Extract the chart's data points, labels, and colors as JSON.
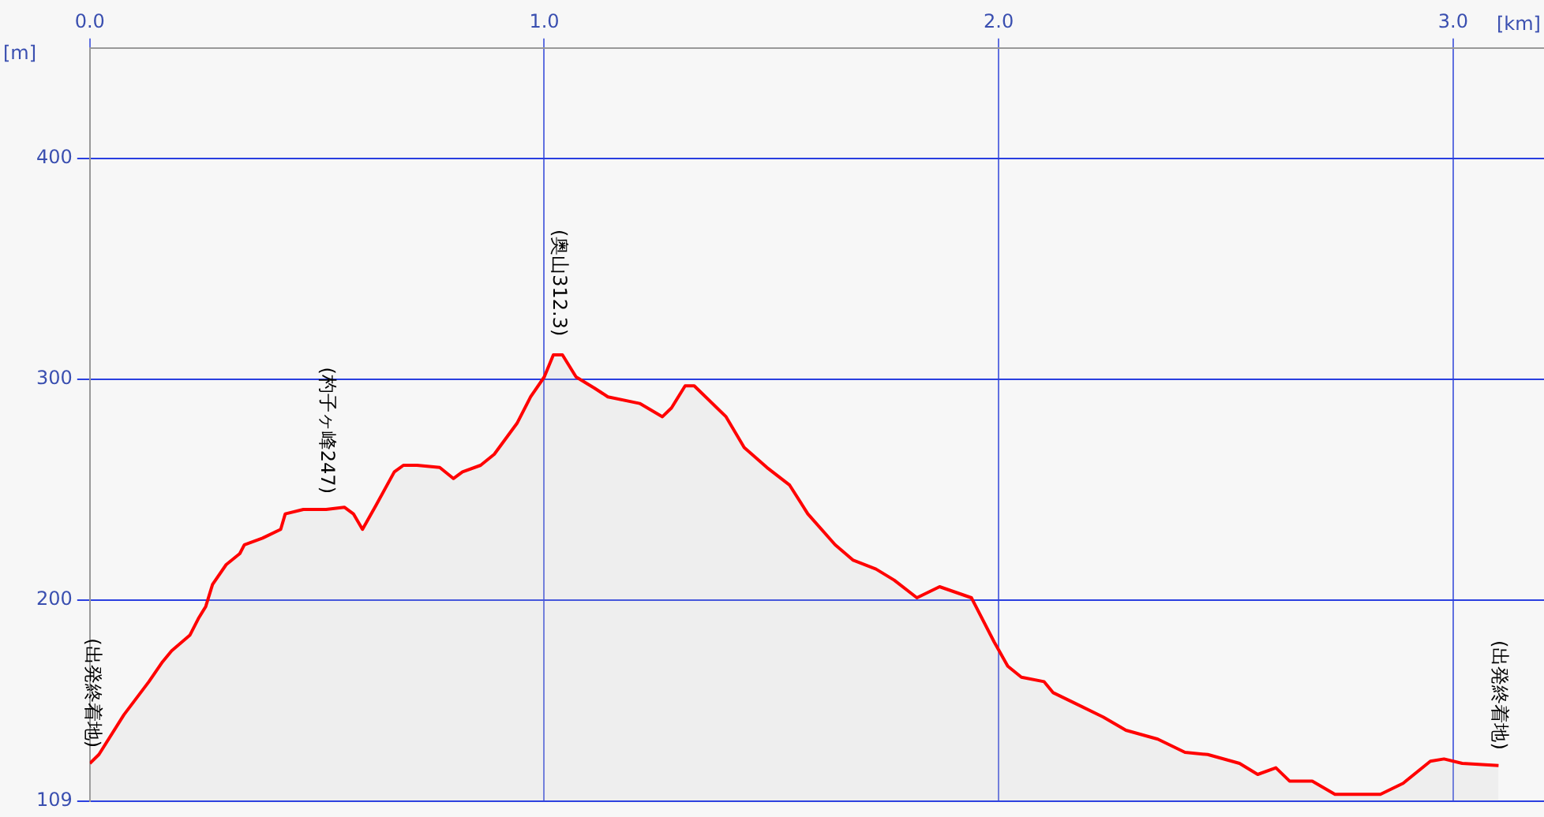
{
  "chart_data": {
    "type": "area",
    "xlabel": "[km]",
    "ylabel": "[m]",
    "x": [
      0,
      0.02,
      0.075,
      0.13,
      0.16,
      0.18,
      0.22,
      0.24,
      0.255,
      0.27,
      0.3,
      0.33,
      0.34,
      0.38,
      0.42,
      0.43,
      0.47,
      0.52,
      0.56,
      0.58,
      0.6,
      0.63,
      0.67,
      0.69,
      0.72,
      0.77,
      0.8,
      0.82,
      0.86,
      0.89,
      0.94,
      0.97,
      1.0,
      1.02,
      1.04,
      1.07,
      1.11,
      1.14,
      1.21,
      1.26,
      1.28,
      1.31,
      1.33,
      1.38,
      1.4,
      1.44,
      1.49,
      1.54,
      1.58,
      1.64,
      1.68,
      1.73,
      1.77,
      1.82,
      1.87,
      1.94,
      1.99,
      2.02,
      2.05,
      2.1,
      2.12,
      2.17,
      2.23,
      2.28,
      2.35,
      2.41,
      2.46,
      2.53,
      2.57,
      2.61,
      2.64,
      2.69,
      2.74,
      2.78,
      2.84,
      2.89,
      2.95,
      2.98,
      3.02,
      3.1
    ],
    "series": [
      {
        "color": "#ff0000",
        "values": [
          126,
          130,
          148,
          163,
          172,
          177,
          184,
          192,
          197,
          207,
          216,
          221,
          225,
          228,
          232,
          239,
          241,
          241,
          242,
          239,
          232,
          243,
          258,
          261,
          261,
          260,
          255,
          258,
          261,
          266,
          280,
          292,
          301,
          311,
          311,
          301,
          296,
          292,
          289,
          283,
          287,
          297,
          297,
          287,
          283,
          269,
          260,
          252,
          239,
          225,
          218,
          214,
          209,
          201,
          206,
          201,
          181,
          170,
          165,
          163,
          158,
          153,
          147,
          141,
          137,
          131,
          130,
          126,
          121,
          124,
          118,
          118,
          112,
          112,
          112,
          117,
          127,
          128,
          126,
          125
        ]
      }
    ],
    "xlim": [
      0,
      3.2
    ],
    "xticks": [
      {
        "value": 0,
        "label": "0.0"
      },
      {
        "value": 1,
        "label": "1.0"
      },
      {
        "value": 2,
        "label": "2.0"
      },
      {
        "value": 3,
        "label": "3.0"
      }
    ],
    "ylim": [
      109,
      450
    ],
    "yticks": [
      109,
      200,
      300,
      400
    ],
    "grid": true,
    "legend": false,
    "marker": "none",
    "line_style": "solid",
    "annotations": [
      {
        "text": "(出発終着地)",
        "x": 0,
        "y": 126
      },
      {
        "text": "(杓子ヶ峰247)",
        "x": 0.52,
        "y": 241
      },
      {
        "text": "(奥山312.3)",
        "x": 1.03,
        "y": 312.3
      },
      {
        "text": "(出発終着地)",
        "x": 3.1,
        "y": 125
      }
    ]
  }
}
